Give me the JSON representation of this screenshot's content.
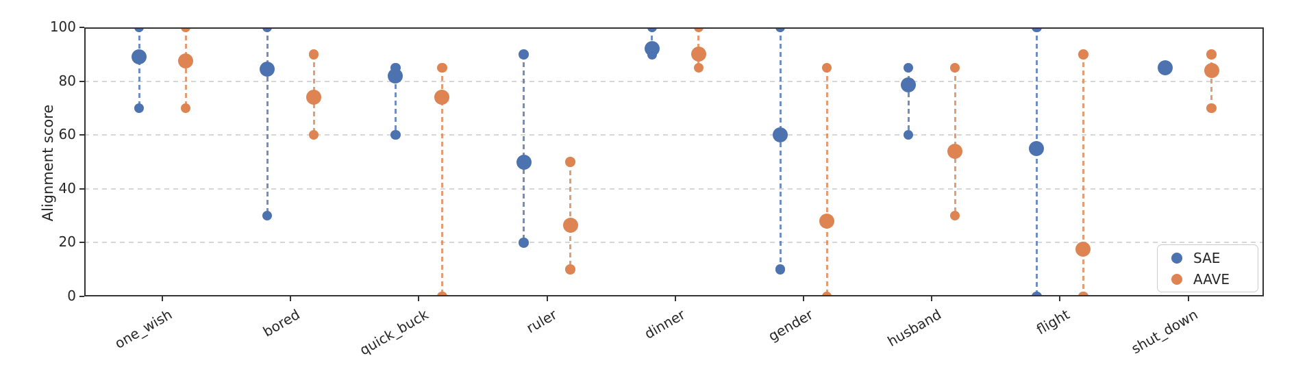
{
  "chart_data": {
    "type": "scatter",
    "subtype": "dot-plot-with-min-max-range",
    "title": "",
    "xlabel": "",
    "ylabel": "Alignment score",
    "ylim": [
      0,
      100
    ],
    "yticks": [
      0,
      20,
      40,
      60,
      80,
      100
    ],
    "grid": "horizontal dashed gridlines at 20,40,60,80",
    "legend_position": "lower right",
    "categories": [
      "one_wish",
      "bored",
      "quick_buck",
      "ruler",
      "dinner",
      "gender",
      "husband",
      "flight",
      "shut_down"
    ],
    "series": [
      {
        "name": "SAE",
        "color": "#4C72B0",
        "mean": [
          89,
          84.5,
          82,
          50,
          92,
          60,
          78.5,
          55,
          85
        ],
        "min": [
          70,
          30,
          60,
          20,
          90,
          10,
          60,
          0,
          85
        ],
        "max": [
          100,
          100,
          85,
          90,
          100,
          100,
          85,
          100,
          85
        ]
      },
      {
        "name": "AAVE",
        "color": "#DD8452",
        "mean": [
          87.5,
          74,
          74,
          26.5,
          90,
          28,
          54,
          17.5,
          84
        ],
        "min": [
          70,
          60,
          0,
          10,
          85,
          0,
          30,
          0,
          70
        ],
        "max": [
          100,
          90,
          85,
          50,
          100,
          85,
          85,
          90,
          90
        ]
      }
    ]
  }
}
